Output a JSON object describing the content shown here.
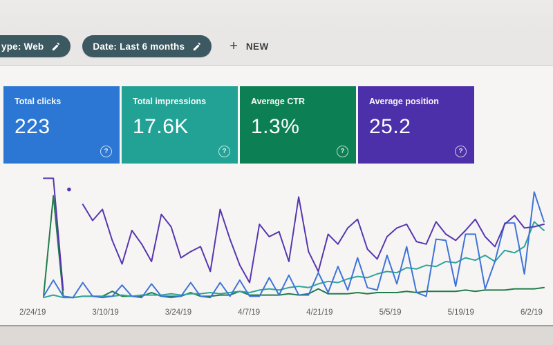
{
  "header": {
    "filter_chips": [
      {
        "label": "ype: Web",
        "icon": "edit-pencil",
        "clipped_left": true
      },
      {
        "label": "Date: Last 6 months",
        "icon": "edit-pencil",
        "clipped_left": false
      }
    ],
    "new_button": {
      "plus": "+",
      "label": "NEW"
    },
    "chip_color": "#3c5861"
  },
  "metric_cards": [
    {
      "label": "Total clicks",
      "value": "223",
      "color": "#2b77d3",
      "help_icon": "?"
    },
    {
      "label": "Total impressions",
      "value": "17.6K",
      "color": "#21a295",
      "help_icon": "?"
    },
    {
      "label": "Average CTR",
      "value": "1.3%",
      "color": "#0c7f55",
      "help_icon": "?"
    },
    {
      "label": "Average position",
      "value": "25.2",
      "color": "#4c30a9",
      "help_icon": "?"
    }
  ],
  "chart_data": {
    "type": "line",
    "title": "",
    "xlabel": "",
    "ylabel": "",
    "y_axis_visible": false,
    "grid": false,
    "legend_position": "none",
    "ylim": [
      0,
      100
    ],
    "x_tick_labels": [
      "2/24/19",
      "3/10/19",
      "3/24/19",
      "4/7/19",
      "4/21/19",
      "5/5/19",
      "5/19/19",
      "6/2/19"
    ],
    "series": [
      {
        "name": "Total clicks",
        "color": "#3d73d9",
        "values": [
          2,
          15,
          2,
          1,
          13,
          2,
          1,
          2,
          11,
          2,
          1,
          12,
          2,
          1,
          2,
          13,
          2,
          1,
          13,
          2,
          15,
          2,
          2,
          17,
          3,
          19,
          3,
          3,
          21,
          5,
          26,
          7,
          33,
          9,
          7,
          35,
          12,
          42,
          5,
          2,
          48,
          47,
          10,
          52,
          52,
          8,
          30,
          61,
          61,
          20,
          86,
          62
        ]
      },
      {
        "name": "Total impressions",
        "color": "#2da59c",
        "values": [
          1,
          3,
          1,
          1,
          2,
          2,
          2,
          2,
          3,
          2,
          3,
          3,
          3,
          4,
          3,
          4,
          4,
          5,
          4,
          5,
          6,
          5,
          7,
          8,
          7,
          9,
          10,
          9,
          12,
          14,
          13,
          16,
          18,
          17,
          20,
          22,
          21,
          25,
          24,
          27,
          26,
          30,
          29,
          33,
          31,
          35,
          30,
          39,
          37,
          42,
          62,
          55
        ]
      },
      {
        "name": "Average CTR",
        "color": "#217b4b",
        "values": [
          2,
          83,
          2,
          1,
          2,
          2,
          2,
          6,
          2,
          2,
          2,
          5,
          2,
          2,
          2,
          5,
          2,
          2,
          3,
          3,
          6,
          3,
          3,
          3,
          3,
          4,
          3,
          4,
          8,
          4,
          4,
          4,
          5,
          4,
          5,
          5,
          5,
          6,
          5,
          6,
          6,
          6,
          6,
          7,
          6,
          7,
          7,
          7,
          8,
          8,
          8,
          9
        ]
      },
      {
        "name": "Average position",
        "color": "#5636b0",
        "values": [
          97,
          97,
          7,
          null,
          76,
          63,
          72,
          47,
          28,
          55,
          44,
          30,
          68,
          58,
          33,
          38,
          42,
          22,
          72,
          48,
          27,
          13,
          60,
          50,
          54,
          30,
          82,
          38,
          22,
          52,
          44,
          57,
          64,
          40,
          32,
          50,
          57,
          60,
          46,
          44,
          62,
          52,
          47,
          55,
          64,
          50,
          42,
          60,
          67,
          57,
          58,
          60
        ],
        "gap_marker": {
          "index": 2.6,
          "value": 88
        }
      }
    ]
  }
}
